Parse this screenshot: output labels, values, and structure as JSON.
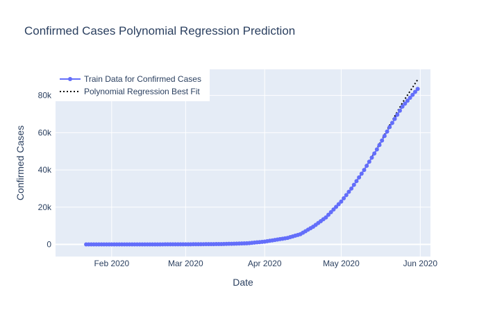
{
  "chart_data": {
    "type": "line",
    "title": "Confirmed Cases Polynomial Regression Prediction",
    "xlabel": "Date",
    "ylabel": "Confirmed Cases",
    "x_ticks": [
      "Feb 2020",
      "Mar 2020",
      "Apr 2020",
      "May 2020",
      "Jun 2020"
    ],
    "x_tick_dates": [
      "2020-02-01",
      "2020-03-01",
      "2020-04-01",
      "2020-05-01",
      "2020-06-01"
    ],
    "y_ticks": [
      "0",
      "20k",
      "40k",
      "60k",
      "80k"
    ],
    "y_tick_values": [
      0,
      20000,
      40000,
      60000,
      80000
    ],
    "xlim": [
      "2020-01-10",
      "2020-06-05"
    ],
    "ylim": [
      -6500,
      94000
    ],
    "grid": true,
    "legend_position": "top-left",
    "colors": {
      "plot_bg": "#e5ecf6",
      "train": "#636efa",
      "fit": "#000000"
    },
    "series": [
      {
        "name": "Train Data for Confirmed Cases",
        "mode": "lines+markers",
        "start_date": "2020-01-22",
        "end_date": "2020-05-31",
        "control_points": [
          [
            "2020-01-22",
            0
          ],
          [
            "2020-02-15",
            20
          ],
          [
            "2020-03-01",
            60
          ],
          [
            "2020-03-15",
            200
          ],
          [
            "2020-03-25",
            600
          ],
          [
            "2020-04-01",
            1500
          ],
          [
            "2020-04-10",
            3500
          ],
          [
            "2020-04-15",
            5500
          ],
          [
            "2020-04-20",
            9500
          ],
          [
            "2020-04-25",
            14500
          ],
          [
            "2020-05-01",
            23000
          ],
          [
            "2020-05-05",
            30000
          ],
          [
            "2020-05-10",
            40000
          ],
          [
            "2020-05-15",
            51000
          ],
          [
            "2020-05-20",
            63000
          ],
          [
            "2020-05-25",
            74000
          ],
          [
            "2020-05-31",
            83500
          ]
        ]
      },
      {
        "name": "Polynomial Regression Best Fit",
        "mode": "lines",
        "dash": "dot",
        "start_date": "2020-01-22",
        "end_date": "2020-05-31",
        "control_points": [
          [
            "2020-01-22",
            0
          ],
          [
            "2020-02-15",
            20
          ],
          [
            "2020-03-01",
            80
          ],
          [
            "2020-03-15",
            300
          ],
          [
            "2020-03-25",
            900
          ],
          [
            "2020-04-01",
            1900
          ],
          [
            "2020-04-10",
            4000
          ],
          [
            "2020-04-15",
            6000
          ],
          [
            "2020-04-20",
            9700
          ],
          [
            "2020-04-25",
            14700
          ],
          [
            "2020-05-01",
            23000
          ],
          [
            "2020-05-05",
            30000
          ],
          [
            "2020-05-10",
            40000
          ],
          [
            "2020-05-15",
            51500
          ],
          [
            "2020-05-20",
            64000
          ],
          [
            "2020-05-25",
            76000
          ],
          [
            "2020-05-31",
            88500
          ]
        ]
      }
    ]
  }
}
